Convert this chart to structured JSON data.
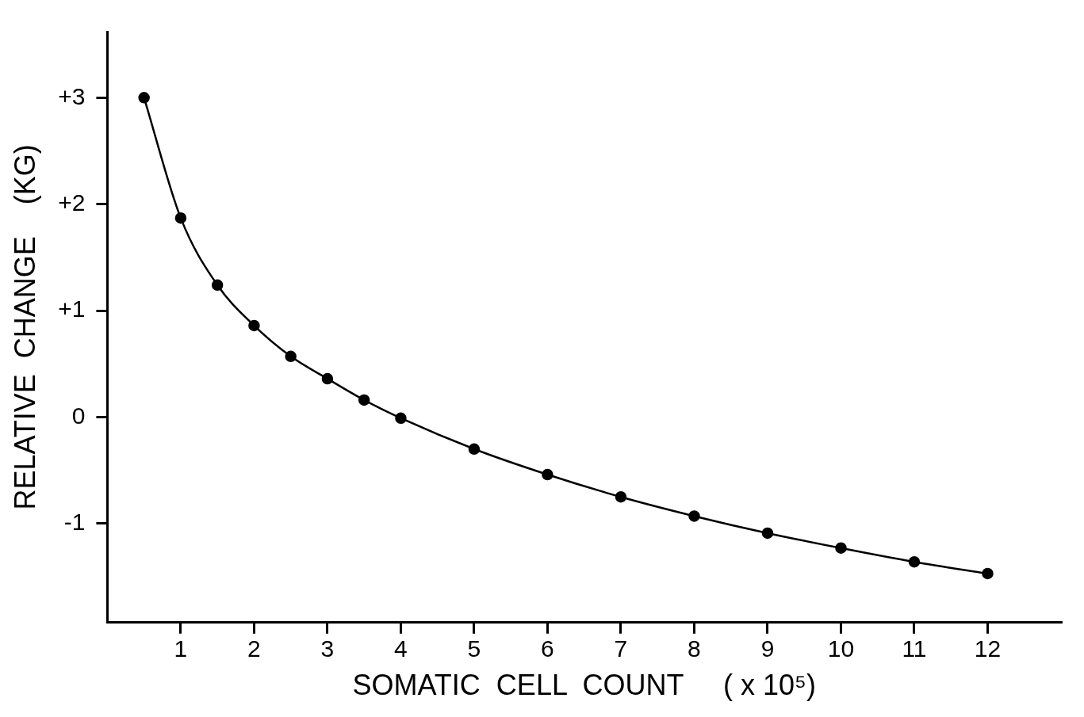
{
  "chart_data": {
    "type": "line",
    "xlabel": "SOMATIC  CELL  COUNT     ( x 10⁵)",
    "ylabel": "RELATIVE  CHANGE    (KG)",
    "x": [
      0.5,
      1,
      1.5,
      2,
      2.5,
      3,
      3.5,
      4,
      5,
      6,
      7,
      8,
      9,
      10,
      11,
      12
    ],
    "series": [
      {
        "color": "#000000",
        "values": [
          3.0,
          1.87,
          1.24,
          0.86,
          0.57,
          0.36,
          0.16,
          -0.01,
          -0.3,
          -0.54,
          -0.75,
          -0.93,
          -1.09,
          -1.23,
          -1.36,
          -1.47
        ]
      }
    ],
    "xlim": [
      0,
      13
    ],
    "xticks": [
      1,
      2,
      3,
      4,
      5,
      6,
      7,
      8,
      9,
      10,
      11,
      12
    ],
    "ylim": [
      -1.93,
      3.62
    ],
    "yticks": [
      {
        "value": 3,
        "label": "+3"
      },
      {
        "value": 2,
        "label": "+2"
      },
      {
        "value": 1,
        "label": "+1"
      },
      0,
      -1
    ],
    "grid": false,
    "legend": false,
    "marker": "circle",
    "line_style": "solid"
  }
}
